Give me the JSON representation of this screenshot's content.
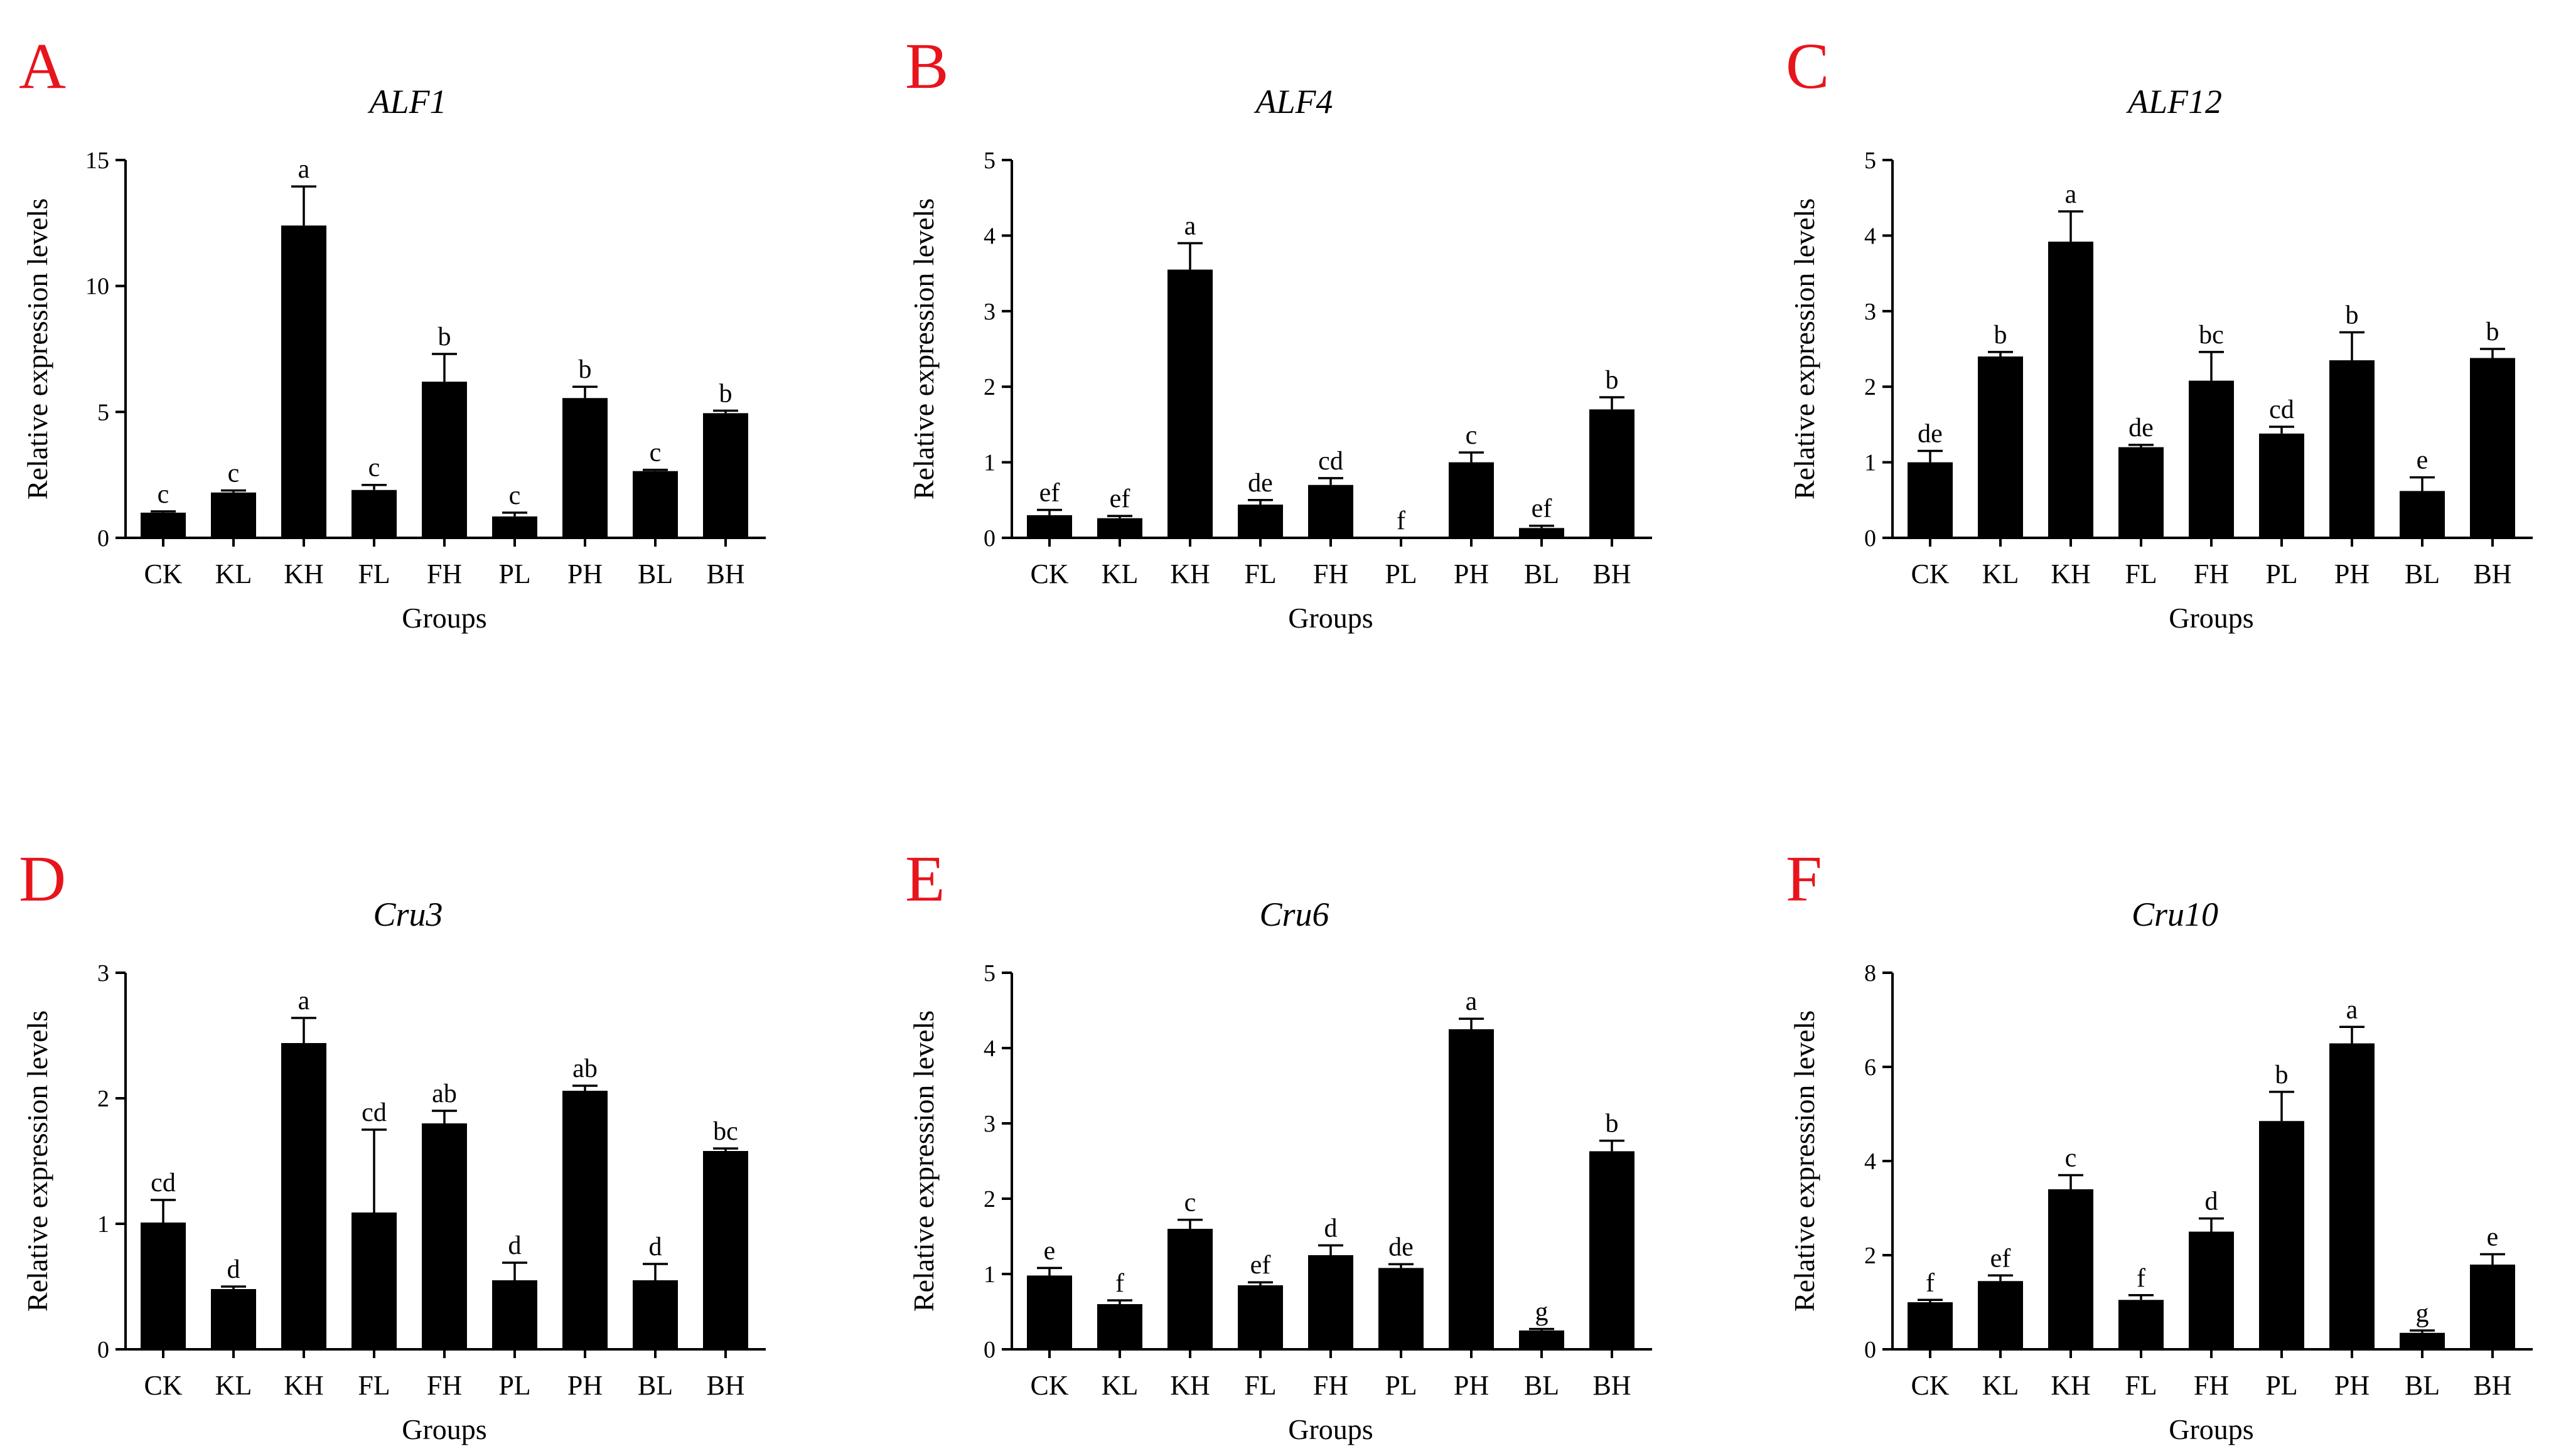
{
  "figure": {
    "background": "#ffffff",
    "letter_color": "#e8141c"
  },
  "chart_data": [
    {
      "panel": "A",
      "type": "bar",
      "title": "ALF1",
      "xlabel": "Groups",
      "ylabel": "Relative expression levels",
      "ylim": [
        0,
        15
      ],
      "yticks": [
        0,
        5,
        10,
        15
      ],
      "categories": [
        "CK",
        "KL",
        "KH",
        "FL",
        "FH",
        "PL",
        "PH",
        "BL",
        "BH"
      ],
      "values": [
        1.0,
        1.8,
        12.4,
        1.9,
        6.2,
        0.85,
        5.55,
        2.65,
        4.95
      ],
      "errors": [
        0.05,
        0.08,
        1.55,
        0.2,
        1.1,
        0.15,
        0.45,
        0.05,
        0.1
      ],
      "letters": [
        "c",
        "c",
        "a",
        "c",
        "b",
        "c",
        "b",
        "c",
        "b"
      ]
    },
    {
      "panel": "B",
      "type": "bar",
      "title": "ALF4",
      "xlabel": "Groups",
      "ylabel": "Relative expression levels",
      "ylim": [
        0,
        5
      ],
      "yticks": [
        0,
        1,
        2,
        3,
        4,
        5
      ],
      "categories": [
        "CK",
        "KL",
        "KH",
        "FL",
        "FH",
        "PL",
        "PH",
        "BL",
        "BH"
      ],
      "values": [
        0.3,
        0.26,
        3.55,
        0.44,
        0.7,
        0.0,
        1.0,
        0.13,
        1.7
      ],
      "errors": [
        0.07,
        0.03,
        0.35,
        0.06,
        0.09,
        0.0,
        0.13,
        0.03,
        0.16
      ],
      "letters": [
        "ef",
        "ef",
        "a",
        "de",
        "cd",
        "f",
        "c",
        "ef",
        "b"
      ]
    },
    {
      "panel": "C",
      "type": "bar",
      "title": "ALF12",
      "xlabel": "Groups",
      "ylabel": "Relative expression levels",
      "ylim": [
        0,
        5
      ],
      "yticks": [
        0,
        1,
        2,
        3,
        4,
        5
      ],
      "categories": [
        "CK",
        "KL",
        "KH",
        "FL",
        "FH",
        "PL",
        "PH",
        "BL",
        "BH"
      ],
      "values": [
        1.0,
        2.4,
        3.92,
        1.2,
        2.08,
        1.38,
        2.35,
        0.62,
        2.38
      ],
      "errors": [
        0.15,
        0.06,
        0.4,
        0.03,
        0.38,
        0.09,
        0.37,
        0.18,
        0.12
      ],
      "letters": [
        "de",
        "b",
        "a",
        "de",
        "bc",
        "cd",
        "b",
        "e",
        "b"
      ]
    },
    {
      "panel": "D",
      "type": "bar",
      "title": "Cru3",
      "xlabel": "Groups",
      "ylabel": "Relative expression levels",
      "ylim": [
        0,
        3
      ],
      "yticks": [
        0,
        1,
        2,
        3
      ],
      "categories": [
        "CK",
        "KL",
        "KH",
        "FL",
        "FH",
        "PL",
        "PH",
        "BL",
        "BH"
      ],
      "values": [
        1.01,
        0.48,
        2.44,
        1.09,
        1.8,
        0.55,
        2.06,
        0.55,
        1.58
      ],
      "errors": [
        0.18,
        0.02,
        0.2,
        0.66,
        0.1,
        0.14,
        0.04,
        0.13,
        0.02
      ],
      "letters": [
        "cd",
        "d",
        "a",
        "cd",
        "ab",
        "d",
        "ab",
        "d",
        "bc"
      ]
    },
    {
      "panel": "E",
      "type": "bar",
      "title": "Cru6",
      "xlabel": "Groups",
      "ylabel": "Relative expression levels",
      "ylim": [
        0,
        5
      ],
      "yticks": [
        0,
        1,
        2,
        3,
        4,
        5
      ],
      "categories": [
        "CK",
        "KL",
        "KH",
        "FL",
        "FH",
        "PL",
        "PH",
        "BL",
        "BH"
      ],
      "values": [
        0.98,
        0.6,
        1.6,
        0.85,
        1.25,
        1.08,
        4.25,
        0.25,
        2.63
      ],
      "errors": [
        0.1,
        0.05,
        0.12,
        0.04,
        0.13,
        0.05,
        0.14,
        0.02,
        0.14
      ],
      "letters": [
        "e",
        "f",
        "c",
        "ef",
        "d",
        "de",
        "a",
        "g",
        "b"
      ]
    },
    {
      "panel": "F",
      "type": "bar",
      "title": "Cru10",
      "xlabel": "Groups",
      "ylabel": "Relative expression levels",
      "ylim": [
        0,
        8
      ],
      "yticks": [
        0,
        2,
        4,
        6,
        8
      ],
      "categories": [
        "CK",
        "KL",
        "KH",
        "FL",
        "FH",
        "PL",
        "PH",
        "BL",
        "BH"
      ],
      "values": [
        1.0,
        1.45,
        3.4,
        1.05,
        2.5,
        4.85,
        6.5,
        0.35,
        1.8
      ],
      "errors": [
        0.05,
        0.12,
        0.3,
        0.1,
        0.28,
        0.62,
        0.35,
        0.05,
        0.22
      ],
      "letters": [
        "f",
        "ef",
        "c",
        "f",
        "d",
        "b",
        "a",
        "g",
        "e"
      ]
    }
  ]
}
